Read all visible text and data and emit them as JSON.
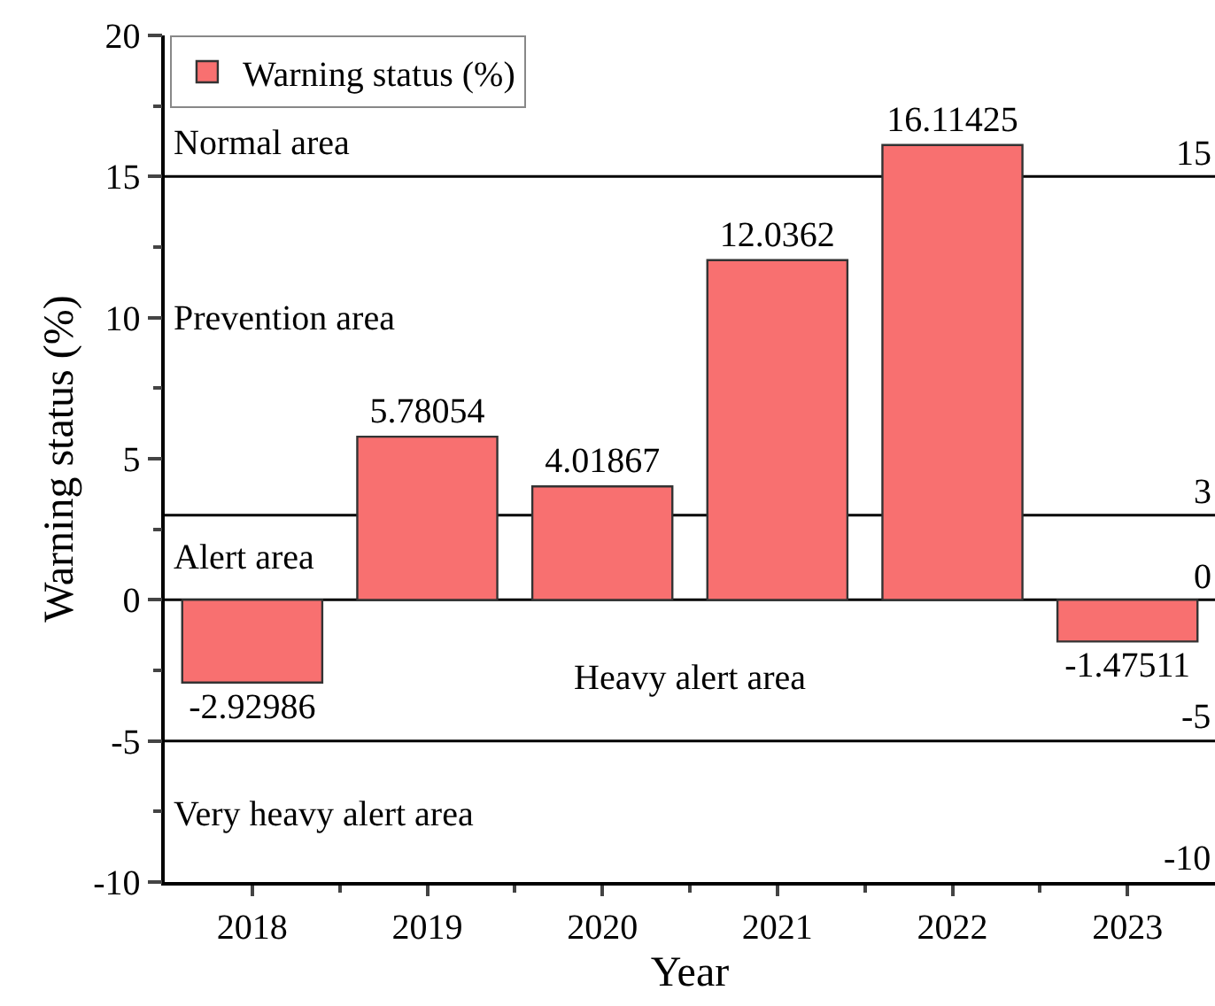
{
  "chart_data": {
    "type": "bar",
    "xlabel": "Year",
    "ylabel": "Warning status (%)",
    "categories": [
      "2018",
      "2019",
      "2020",
      "2021",
      "2022",
      "2023"
    ],
    "series": [
      {
        "name": "Warning status (%)",
        "color": "#f87070",
        "values": [
          -2.92986,
          5.78054,
          4.01867,
          12.0362,
          16.11425,
          -1.47511
        ]
      }
    ],
    "data_labels": true,
    "ylim": [
      -10,
      20
    ],
    "yticks": [
      -10,
      -5,
      0,
      5,
      10,
      15,
      20
    ],
    "ref_lines": [
      {
        "axis": "y",
        "value": 15,
        "label": "15"
      },
      {
        "axis": "y",
        "value": 3,
        "label": "3"
      },
      {
        "axis": "y",
        "value": 0,
        "label": "0"
      },
      {
        "axis": "y",
        "value": -5,
        "label": "-5"
      }
    ],
    "annotations": [
      "Normal area",
      "Prevention area",
      "Alert area",
      "Heavy alert area",
      "Very heavy alert area",
      "-10"
    ],
    "grid": false,
    "legend": "top left"
  }
}
